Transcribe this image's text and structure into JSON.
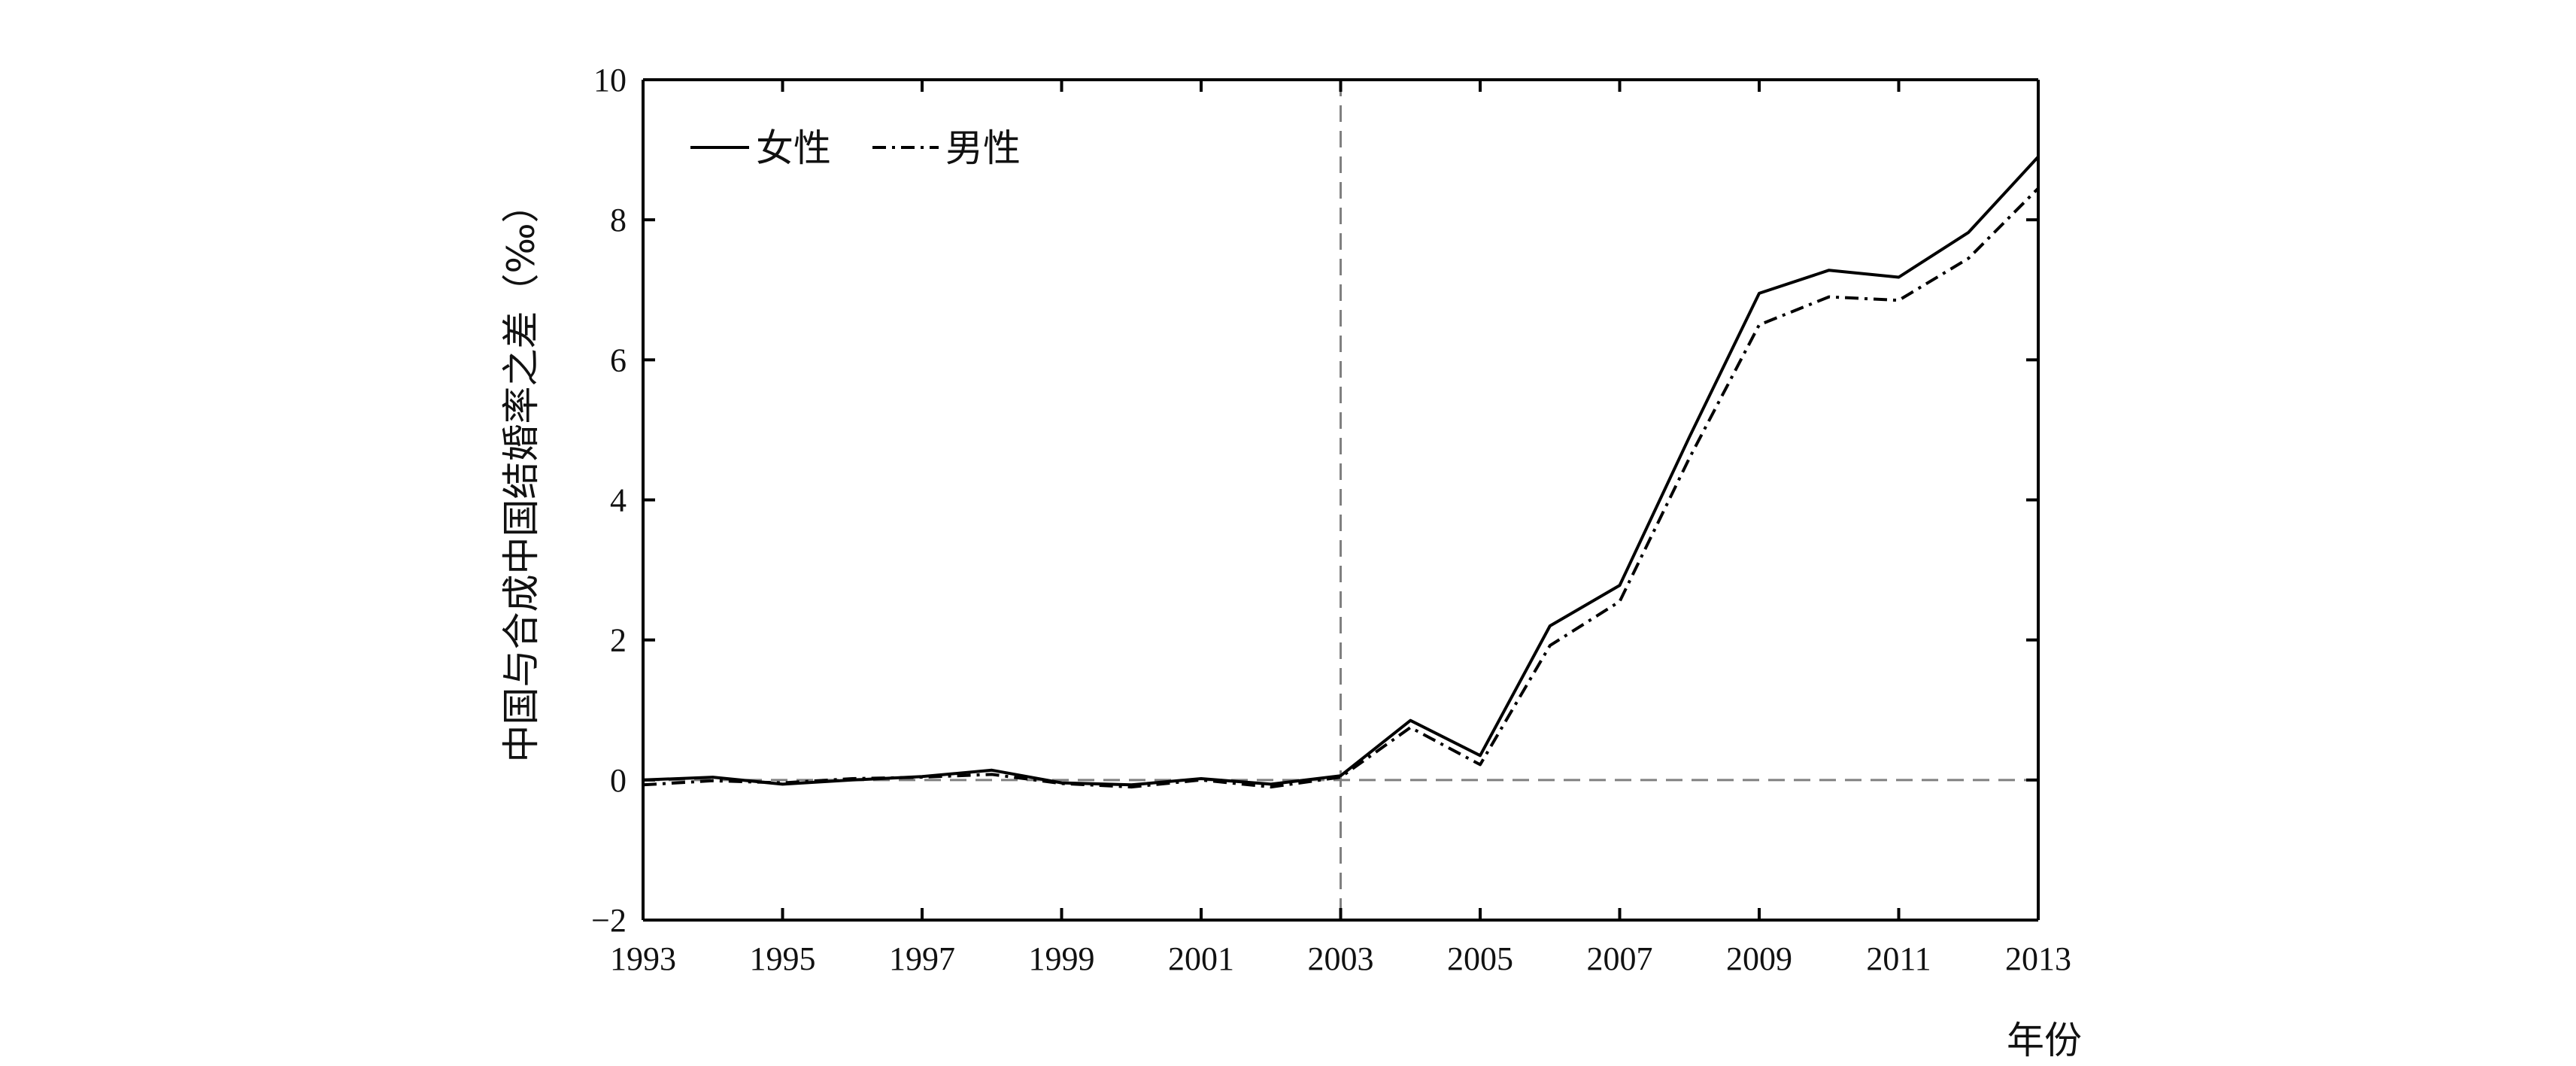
{
  "chart_data": {
    "type": "line",
    "title": "",
    "xlabel": "年份",
    "ylabel": "中国与合成中国结婚率之差（‰）",
    "xlim": [
      1993,
      2013
    ],
    "ylim": [
      -2,
      10
    ],
    "x_ticks": [
      1993,
      1995,
      1997,
      1999,
      2001,
      2003,
      2005,
      2007,
      2009,
      2011,
      2013
    ],
    "x_tick_labels": [
      "1993",
      "1995",
      "1997",
      "1999",
      "2001",
      "2003",
      "2005",
      "2007",
      "2009",
      "2011",
      "2013"
    ],
    "y_ticks": [
      -2,
      0,
      2,
      4,
      6,
      8,
      10
    ],
    "y_tick_labels": [
      "−2",
      "0",
      "2",
      "4",
      "6",
      "8",
      "10"
    ],
    "x": [
      1993,
      1994,
      1995,
      1996,
      1997,
      1998,
      1999,
      2000,
      2001,
      2002,
      2003,
      2004,
      2005,
      2006,
      2007,
      2008,
      2009,
      2010,
      2011,
      2012,
      2013
    ],
    "series": [
      {
        "name": "女性",
        "style": "solid",
        "color": "#000000",
        "values": [
          0.0,
          0.04,
          -0.06,
          0.0,
          0.05,
          0.14,
          -0.04,
          -0.07,
          0.02,
          -0.06,
          0.06,
          0.85,
          0.35,
          2.2,
          2.78,
          4.9,
          6.95,
          7.28,
          7.18,
          7.82,
          8.9
        ]
      },
      {
        "name": "男性",
        "style": "dashdot",
        "color": "#000000",
        "values": [
          -0.07,
          -0.01,
          -0.04,
          0.02,
          0.04,
          0.08,
          -0.05,
          -0.1,
          0.0,
          -0.1,
          0.04,
          0.75,
          0.22,
          1.92,
          2.55,
          4.6,
          6.5,
          6.9,
          6.85,
          7.45,
          8.45
        ]
      }
    ],
    "reference_lines": {
      "horizontal_y": 0,
      "vertical_x": 2003,
      "style": "dashed",
      "color": "#808080"
    },
    "legend": {
      "placement": "top-left",
      "entries": [
        "女性",
        "男性"
      ]
    },
    "grid": false
  }
}
